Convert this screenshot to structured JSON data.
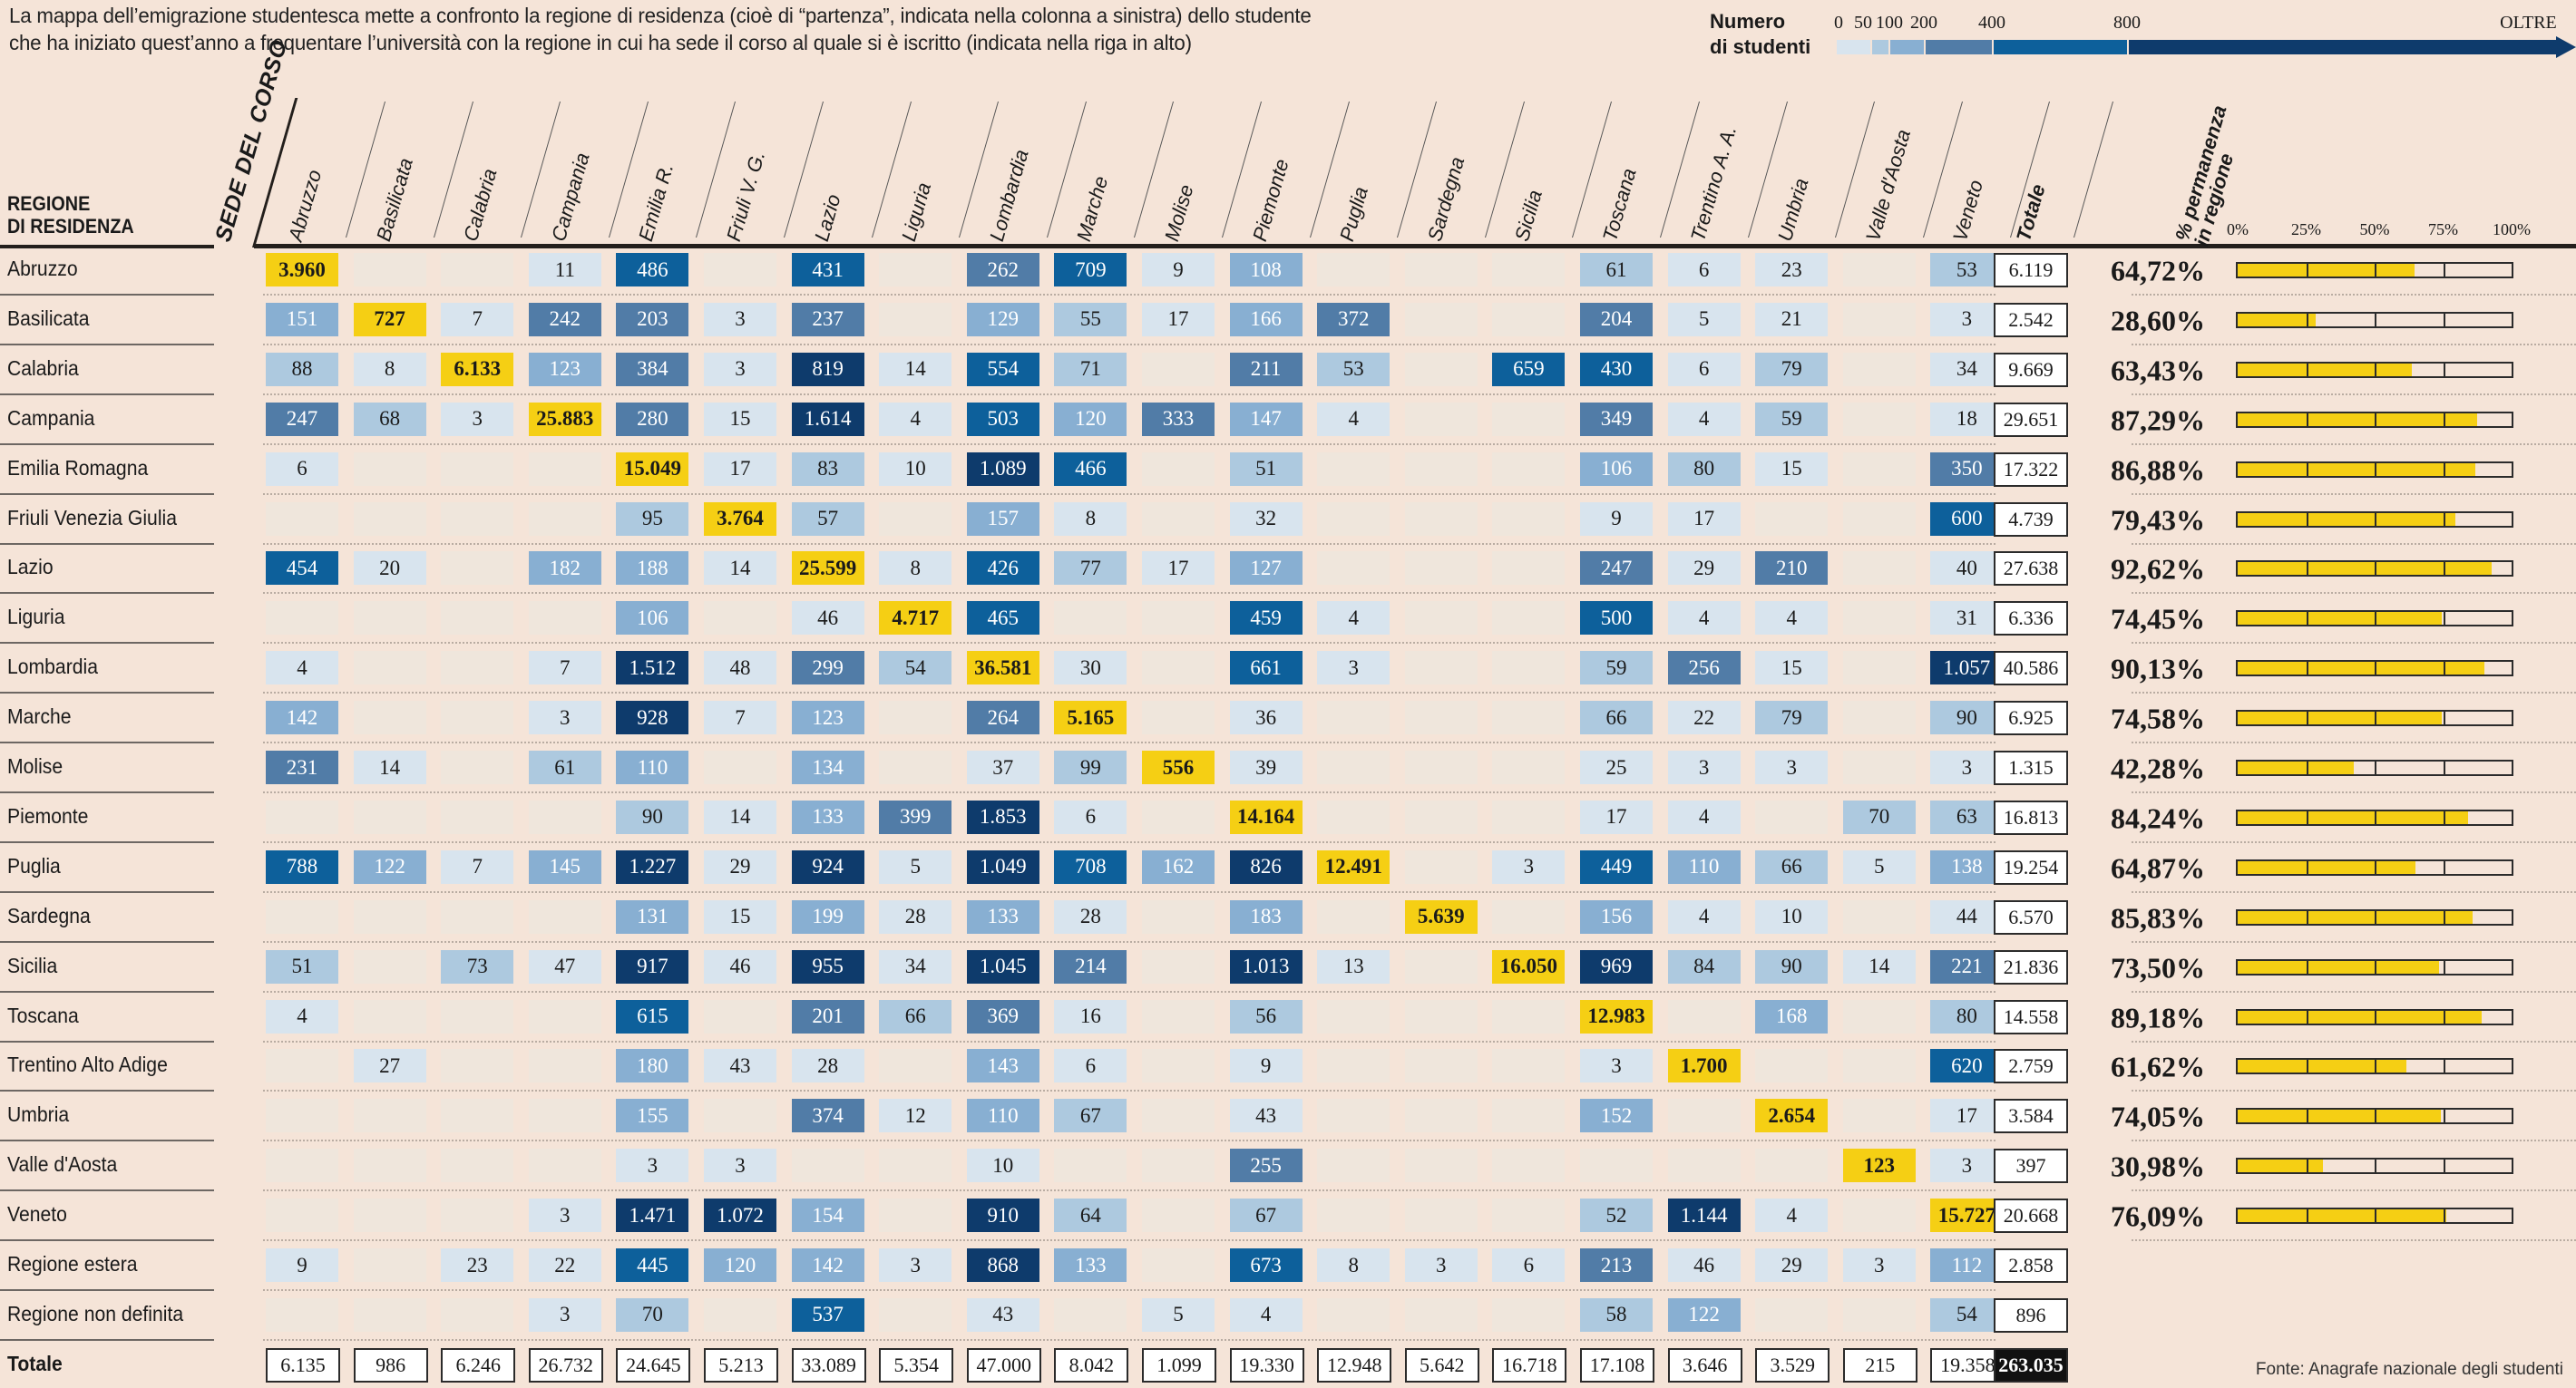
{
  "intro": {
    "line1": "La mappa dell’emigrazione studentesca mette a confronto la regione di residenza (cioè di “partenza”, indicata nella colonna a sinistra) dello studente",
    "line2": "che ha iniziato quest’anno a frequentare l’università con la regione in cui ha sede il corso al quale si è iscritto (indicata nella riga in alto)"
  },
  "legend": {
    "title_line1": "Numero",
    "title_line2": "di studenti",
    "ticks": [
      "0",
      "50",
      "100",
      "200",
      "400",
      "800",
      "OLTRE"
    ],
    "colors": {
      "empty": "#efe6dc",
      "b0_50": "#d8e4ee",
      "b50_100": "#adc9df",
      "b100_200": "#88afd2",
      "b200_400": "#517ca7",
      "b400_800": "#0d609b",
      "b800_plus": "#0e3b6c",
      "same_region": "#f5cf14"
    }
  },
  "headers": {
    "row_header_line1": "REGIONE",
    "row_header_line2": "DI RESIDENZA",
    "sede_label": "SEDE DEL CORSO",
    "total_col_label": "Totale",
    "perm_line1": "% permanenza",
    "perm_line2": "in regione",
    "perm_ticks": [
      "0%",
      "25%",
      "50%",
      "75%",
      "100%"
    ]
  },
  "source": "Fonte: Anagrafe nazionale degli studenti",
  "chart_data": {
    "type": "heatmap",
    "title": "Emigrazione studentesca: regione di residenza vs regione sede del corso",
    "xlabel": "Sede del corso",
    "ylabel": "Regione di residenza",
    "columns": [
      "Abruzzo",
      "Basilicata",
      "Calabria",
      "Campania",
      "Emilia R.",
      "Friuli V. G.",
      "Lazio",
      "Liguria",
      "Lombardia",
      "Marche",
      "Molise",
      "Piemonte",
      "Puglia",
      "Sardegna",
      "Sicilia",
      "Toscana",
      "Trentino A. A.",
      "Umbria",
      "Valle d'Aosta",
      "Veneto"
    ],
    "rows": [
      {
        "region": "Abruzzo",
        "values": [
          3960,
          null,
          null,
          11,
          486,
          null,
          431,
          null,
          262,
          709,
          9,
          108,
          null,
          null,
          null,
          61,
          6,
          23,
          null,
          53
        ],
        "total": "6.119",
        "perm": "64,72%",
        "perm_value": 64.72
      },
      {
        "region": "Basilicata",
        "values": [
          151,
          727,
          7,
          242,
          203,
          3,
          237,
          null,
          129,
          55,
          17,
          166,
          372,
          null,
          null,
          204,
          5,
          21,
          null,
          3
        ],
        "total": "2.542",
        "perm": "28,60%",
        "perm_value": 28.6
      },
      {
        "region": "Calabria",
        "values": [
          88,
          8,
          6133,
          123,
          384,
          3,
          819,
          14,
          554,
          71,
          null,
          211,
          53,
          null,
          659,
          430,
          6,
          79,
          null,
          34
        ],
        "total": "9.669",
        "perm": "63,43%",
        "perm_value": 63.43
      },
      {
        "region": "Campania",
        "values": [
          247,
          68,
          3,
          25883,
          280,
          15,
          1614,
          4,
          503,
          120,
          333,
          147,
          4,
          null,
          null,
          349,
          4,
          59,
          null,
          18
        ],
        "total": "29.651",
        "perm": "87,29%",
        "perm_value": 87.29
      },
      {
        "region": "Emilia Romagna",
        "values": [
          6,
          null,
          null,
          null,
          15049,
          17,
          83,
          10,
          1089,
          466,
          null,
          51,
          null,
          null,
          null,
          106,
          80,
          15,
          null,
          350
        ],
        "total": "17.322",
        "perm": "86,88%",
        "perm_value": 86.88
      },
      {
        "region": "Friuli Venezia Giulia",
        "values": [
          null,
          null,
          null,
          null,
          95,
          3764,
          57,
          null,
          157,
          8,
          null,
          32,
          null,
          null,
          null,
          9,
          17,
          null,
          null,
          600
        ],
        "total": "4.739",
        "perm": "79,43%",
        "perm_value": 79.43
      },
      {
        "region": "Lazio",
        "values": [
          454,
          20,
          null,
          182,
          188,
          14,
          25599,
          8,
          426,
          77,
          17,
          127,
          null,
          null,
          null,
          247,
          29,
          210,
          null,
          40
        ],
        "total": "27.638",
        "perm": "92,62%",
        "perm_value": 92.62
      },
      {
        "region": "Liguria",
        "values": [
          null,
          null,
          null,
          null,
          106,
          null,
          46,
          4717,
          465,
          null,
          null,
          459,
          4,
          null,
          null,
          500,
          4,
          4,
          null,
          31
        ],
        "total": "6.336",
        "perm": "74,45%",
        "perm_value": 74.45
      },
      {
        "region": "Lombardia",
        "values": [
          4,
          null,
          null,
          7,
          1512,
          48,
          299,
          54,
          36581,
          30,
          null,
          661,
          3,
          null,
          null,
          59,
          256,
          15,
          null,
          1057
        ],
        "total": "40.586",
        "perm": "90,13%",
        "perm_value": 90.13
      },
      {
        "region": "Marche",
        "values": [
          142,
          null,
          null,
          3,
          928,
          7,
          123,
          null,
          264,
          5165,
          null,
          36,
          null,
          null,
          null,
          66,
          22,
          79,
          null,
          90
        ],
        "total": "6.925",
        "perm": "74,58%",
        "perm_value": 74.58
      },
      {
        "region": "Molise",
        "values": [
          231,
          14,
          null,
          61,
          110,
          null,
          134,
          null,
          37,
          99,
          556,
          39,
          null,
          null,
          null,
          25,
          3,
          3,
          null,
          3
        ],
        "total": "1.315",
        "perm": "42,28%",
        "perm_value": 42.28
      },
      {
        "region": "Piemonte",
        "values": [
          null,
          null,
          null,
          null,
          90,
          14,
          133,
          399,
          1853,
          6,
          null,
          14164,
          null,
          null,
          null,
          17,
          4,
          null,
          70,
          63
        ],
        "total": "16.813",
        "perm": "84,24%",
        "perm_value": 84.24
      },
      {
        "region": "Puglia",
        "values": [
          788,
          122,
          7,
          145,
          1227,
          29,
          924,
          5,
          1049,
          708,
          162,
          826,
          12491,
          null,
          3,
          449,
          110,
          66,
          5,
          138
        ],
        "total": "19.254",
        "perm": "64,87%",
        "perm_value": 64.87
      },
      {
        "region": "Sardegna",
        "values": [
          null,
          null,
          null,
          null,
          131,
          15,
          199,
          28,
          133,
          28,
          null,
          183,
          null,
          5639,
          null,
          156,
          4,
          10,
          null,
          44
        ],
        "total": "6.570",
        "perm": "85,83%",
        "perm_value": 85.83
      },
      {
        "region": "Sicilia",
        "values": [
          51,
          null,
          73,
          47,
          917,
          46,
          955,
          34,
          1045,
          214,
          null,
          1013,
          13,
          null,
          16050,
          969,
          84,
          90,
          14,
          221
        ],
        "total": "21.836",
        "perm": "73,50%",
        "perm_value": 73.5
      },
      {
        "region": "Toscana",
        "values": [
          4,
          null,
          null,
          null,
          615,
          null,
          201,
          66,
          369,
          16,
          null,
          56,
          null,
          null,
          null,
          12983,
          null,
          168,
          null,
          80
        ],
        "total": "14.558",
        "perm": "89,18%",
        "perm_value": 89.18
      },
      {
        "region": "Trentino Alto Adige",
        "values": [
          null,
          27,
          null,
          null,
          180,
          43,
          28,
          null,
          143,
          6,
          null,
          9,
          null,
          null,
          null,
          3,
          1700,
          null,
          null,
          620
        ],
        "total": "2.759",
        "perm": "61,62%",
        "perm_value": 61.62
      },
      {
        "region": "Umbria",
        "values": [
          null,
          null,
          null,
          null,
          155,
          null,
          374,
          12,
          110,
          67,
          null,
          43,
          null,
          null,
          null,
          152,
          null,
          2654,
          null,
          17
        ],
        "total": "3.584",
        "perm": "74,05%",
        "perm_value": 74.05
      },
      {
        "region": "Valle d'Aosta",
        "values": [
          null,
          null,
          null,
          null,
          3,
          3,
          null,
          null,
          10,
          null,
          null,
          255,
          null,
          null,
          null,
          null,
          null,
          null,
          123,
          3
        ],
        "total": "397",
        "perm": "30,98%",
        "perm_value": 30.98
      },
      {
        "region": "Veneto",
        "values": [
          null,
          null,
          null,
          3,
          1471,
          1072,
          154,
          null,
          910,
          64,
          null,
          67,
          null,
          null,
          null,
          52,
          1144,
          4,
          null,
          15727
        ],
        "total": "20.668",
        "perm": "76,09%",
        "perm_value": 76.09
      },
      {
        "region": "Regione estera",
        "values": [
          9,
          null,
          23,
          22,
          445,
          120,
          142,
          3,
          868,
          133,
          null,
          673,
          8,
          3,
          6,
          213,
          46,
          29,
          3,
          112
        ],
        "total": "2.858",
        "perm": null,
        "perm_value": null
      },
      {
        "region": "Regione non definita",
        "values": [
          null,
          null,
          null,
          3,
          70,
          null,
          537,
          null,
          43,
          null,
          5,
          4,
          null,
          null,
          null,
          58,
          122,
          null,
          null,
          54
        ],
        "total": "896",
        "perm": null,
        "perm_value": null
      }
    ],
    "column_totals": [
      "6.135",
      "986",
      "6.246",
      "26.732",
      "24.645",
      "5.213",
      "33.089",
      "5.354",
      "47.000",
      "8.042",
      "1.099",
      "19.330",
      "12.948",
      "5.642",
      "16.718",
      "17.108",
      "3.646",
      "3.529",
      "215",
      "19.358"
    ],
    "totals_row_label": "Totale",
    "grand_total": "263.035",
    "color_bins": [
      0,
      50,
      100,
      200,
      400,
      800
    ],
    "same_region_highlight": "yellow"
  }
}
